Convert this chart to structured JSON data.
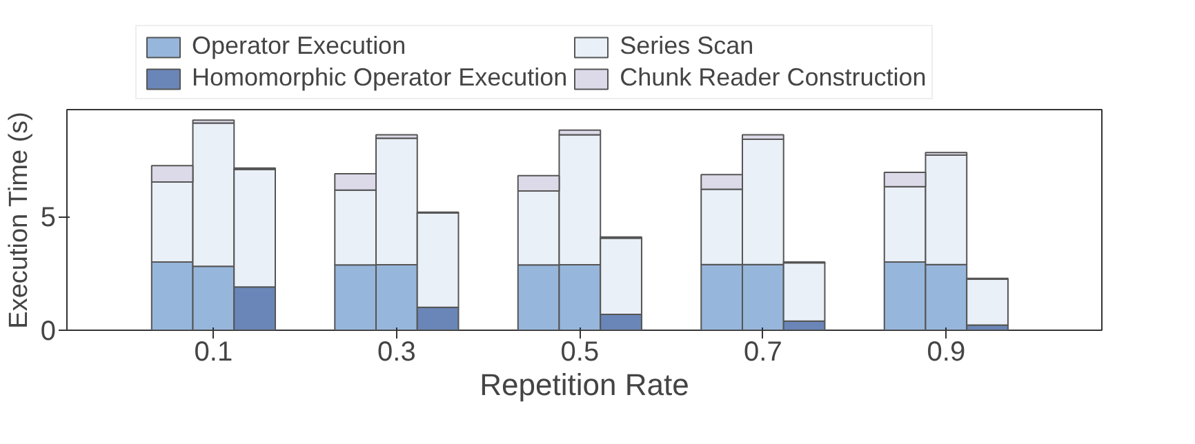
{
  "chart_data": {
    "type": "bar",
    "stacked": true,
    "xlabel": "Repetition Rate",
    "ylabel": "Execution Time (s)",
    "x": [
      0.055,
      0.1,
      0.145,
      0.255,
      0.3,
      0.345,
      0.455,
      0.5,
      0.545,
      0.655,
      0.7,
      0.745,
      0.855,
      0.9,
      0.945
    ],
    "xlim": [
      -0.06,
      1.07
    ],
    "xticks": [
      0.1,
      0.3,
      0.5,
      0.7,
      0.9
    ],
    "ylim": [
      0,
      9.7
    ],
    "yticks": [
      0,
      5
    ],
    "grid": false,
    "legend": "top",
    "series": [
      {
        "name": "Operator Execution",
        "color": "#97b6db",
        "values": [
          3.0,
          2.81,
          null,
          2.87,
          2.88,
          null,
          2.87,
          2.88,
          null,
          2.89,
          2.89,
          null,
          3.0,
          2.89,
          null
        ]
      },
      {
        "name": "Homomorphic Operator Execution",
        "color": "#6a86b8",
        "values": [
          null,
          null,
          1.9,
          null,
          null,
          1.01,
          null,
          null,
          0.7,
          null,
          null,
          0.4,
          null,
          null,
          0.23
        ]
      },
      {
        "name": "Series Scan",
        "color": "#eaf0f8",
        "values": [
          3.52,
          6.3,
          5.17,
          3.29,
          5.56,
          4.14,
          3.25,
          5.71,
          3.35,
          3.31,
          5.51,
          2.56,
          3.31,
          4.81,
          2.01
        ]
      },
      {
        "name": "Chunk Reader Construction",
        "color": "#dcdae8",
        "values": [
          0.72,
          0.13,
          0.06,
          0.72,
          0.15,
          0.04,
          0.68,
          0.21,
          0.05,
          0.64,
          0.19,
          0.04,
          0.63,
          0.11,
          0.04
        ]
      }
    ]
  }
}
